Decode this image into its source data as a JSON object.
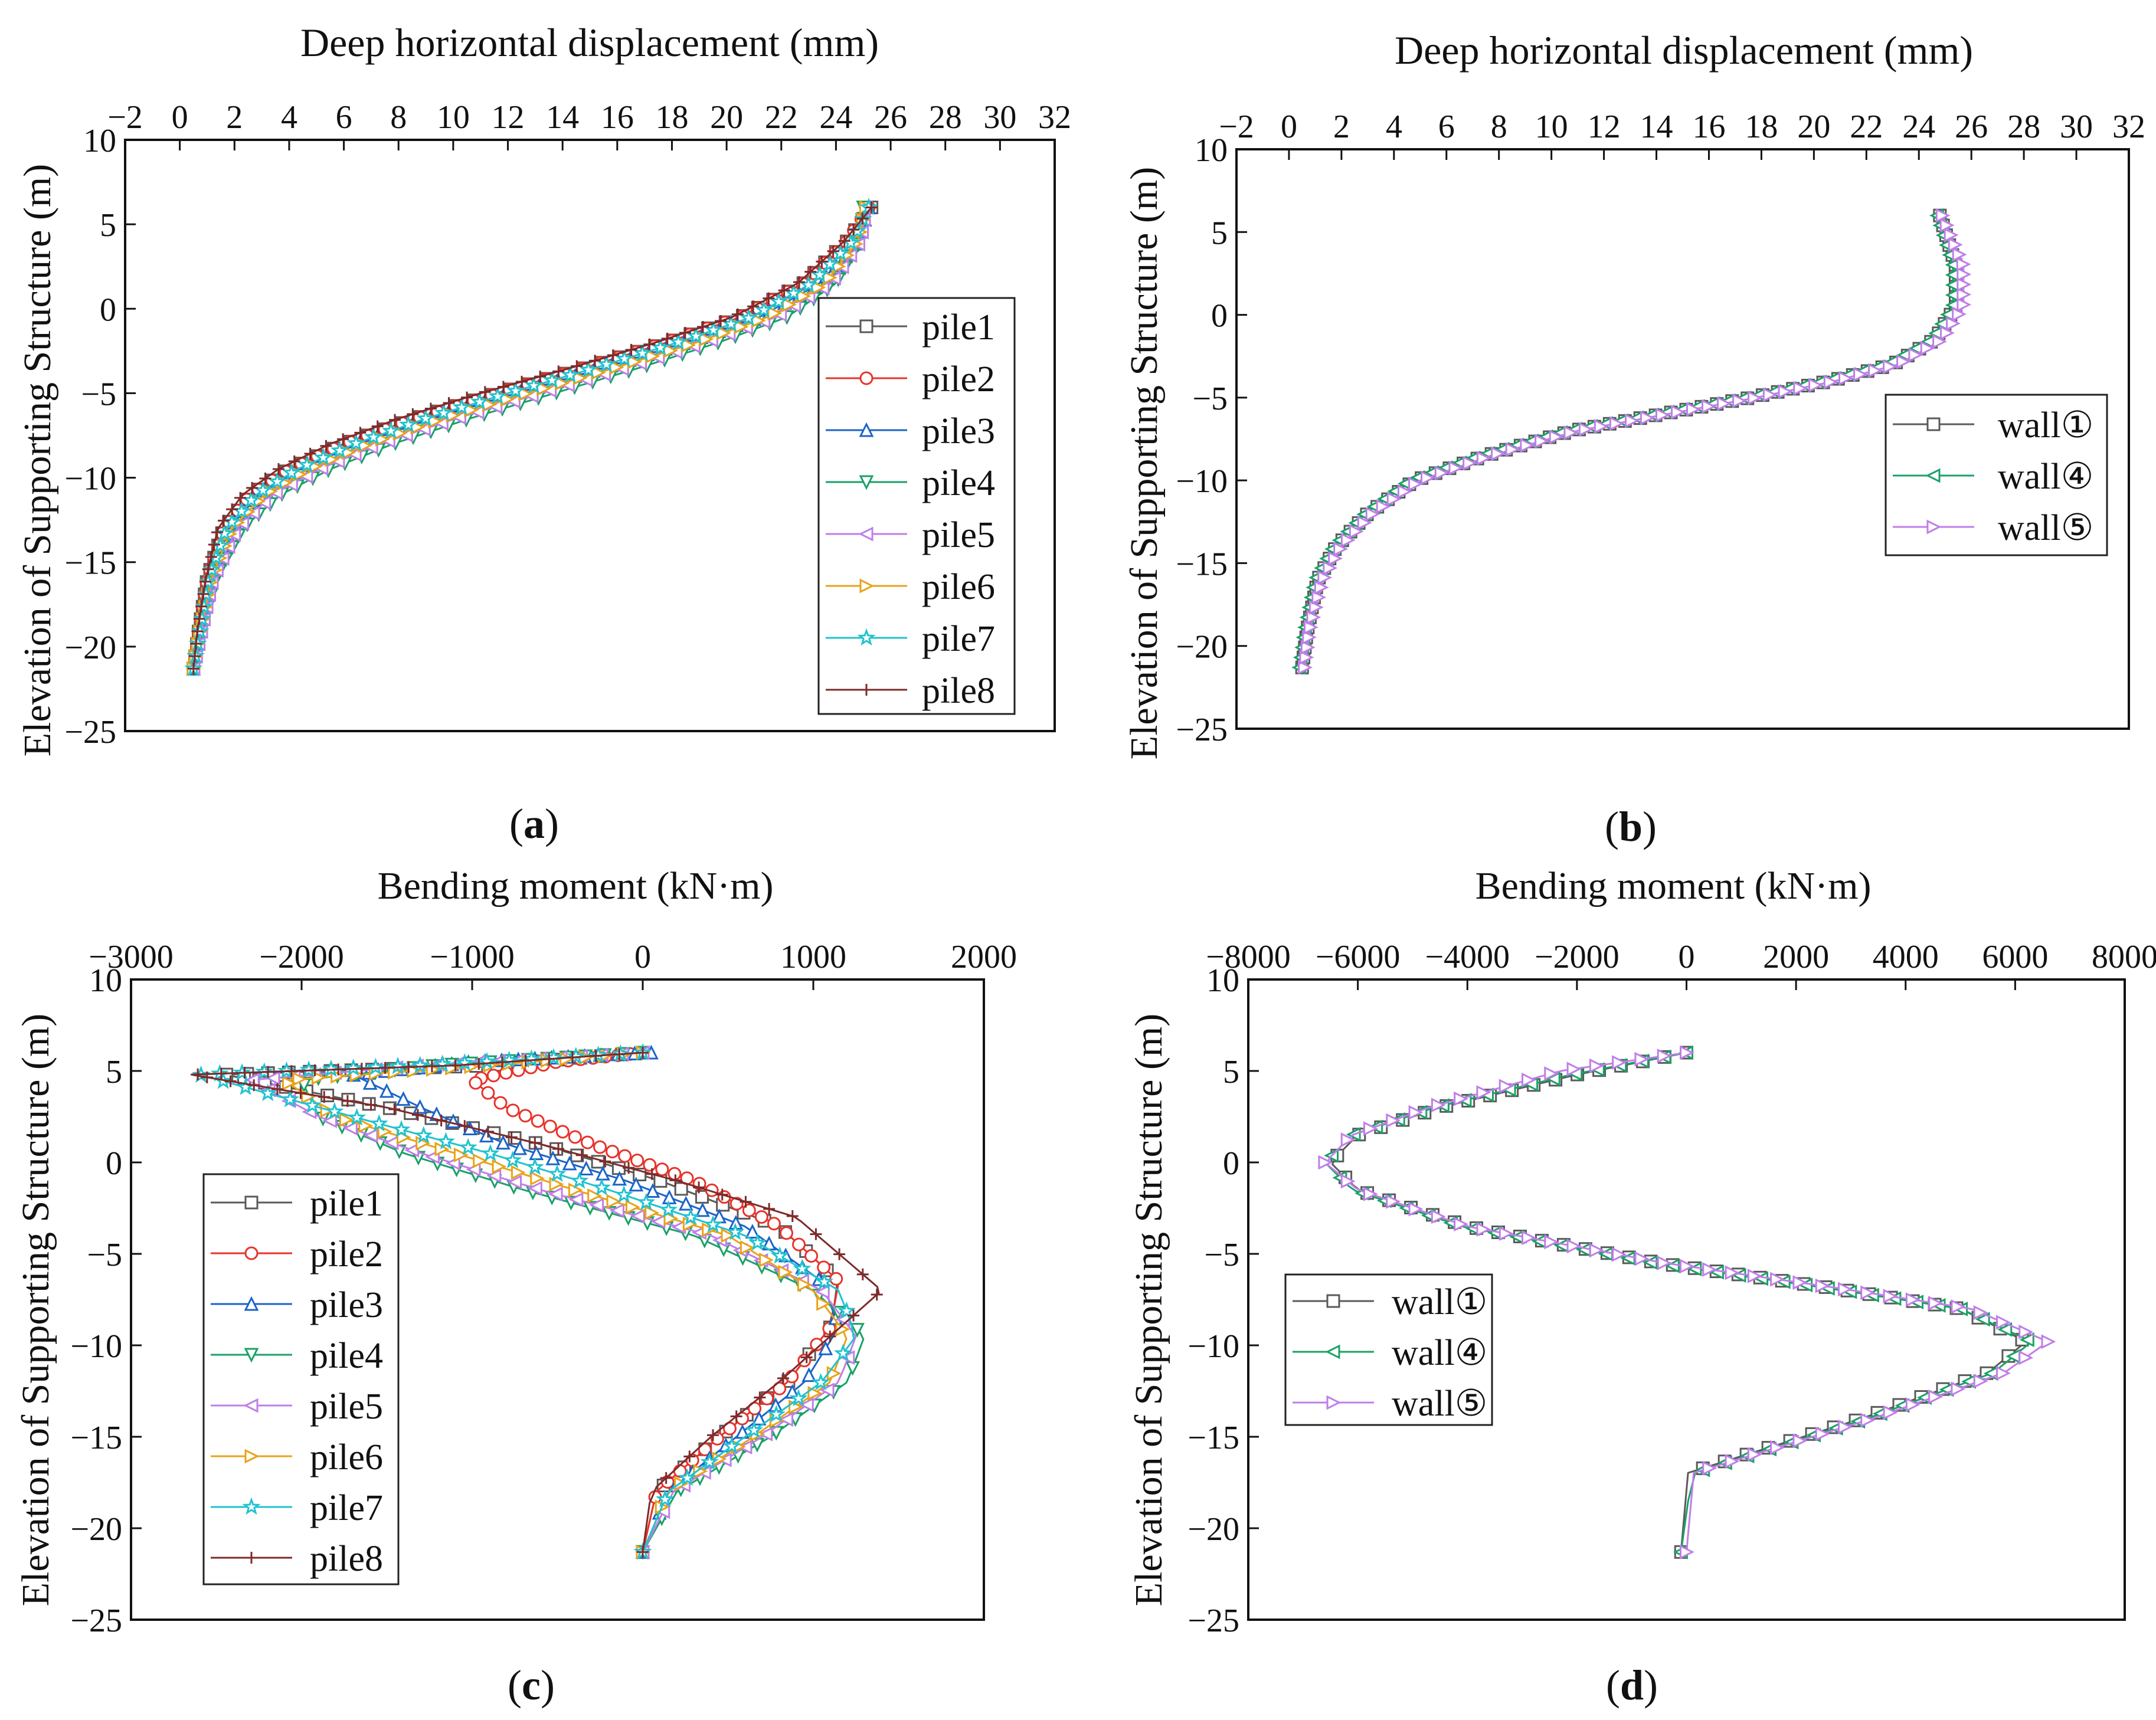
{
  "figure": {
    "panels": [
      "a",
      "b",
      "c",
      "d"
    ]
  },
  "series_styles": {
    "pile1": {
      "color": "#5a5a5a",
      "marker": "square"
    },
    "pile2": {
      "color": "#e8332b",
      "marker": "circle"
    },
    "pile3": {
      "color": "#1c64c8",
      "marker": "triangle-up"
    },
    "pile4": {
      "color": "#1aa167",
      "marker": "triangle-down"
    },
    "pile5": {
      "color": "#c07ee8",
      "marker": "triangle-left"
    },
    "pile6": {
      "color": "#e8a317",
      "marker": "triangle-right"
    },
    "pile7": {
      "color": "#22c2cf",
      "marker": "star"
    },
    "pile8": {
      "color": "#7e2a2a",
      "marker": "plus"
    },
    "wall1": {
      "color": "#5a5a5a",
      "marker": "square"
    },
    "wall4": {
      "color": "#1aa167",
      "marker": "triangle-left"
    },
    "wall5": {
      "color": "#c07ee8",
      "marker": "triangle-right"
    }
  },
  "chart_data": [
    {
      "id": "a",
      "type": "line",
      "caption": "a",
      "xlabel": "Deep horizontal displacement (mm)",
      "ylabel": "Elevation of Supporting Structure (m)",
      "xlim": [
        -2,
        32
      ],
      "ylim": [
        -25,
        10
      ],
      "xticks": [
        "−2",
        "0",
        "2",
        "4",
        "6",
        "8",
        "10",
        "12",
        "14",
        "16",
        "18",
        "20",
        "22",
        "24",
        "26",
        "28",
        "30",
        "32"
      ],
      "yticks": [
        "10",
        "5",
        "0",
        "−5",
        "−10",
        "−15",
        "−20",
        "−25"
      ],
      "legend": "right-middle",
      "series": [
        {
          "name": "pile1",
          "style": "pile1",
          "x": [
            0.5,
            0.7,
            1.0,
            1.6,
            2.6,
            4.0,
            6.0,
            8.6,
            11.6,
            14.8,
            17.8,
            20.5,
            22.8,
            24.4,
            25.3
          ],
          "y": [
            -21.3,
            -19,
            -16,
            -13,
            -11,
            -9.5,
            -8,
            -6.5,
            -5,
            -3.5,
            -2,
            -0.5,
            1.5,
            4,
            6
          ]
        },
        {
          "name": "pile2",
          "style": "pile2",
          "x": [
            0.5,
            0.7,
            1.0,
            1.6,
            2.6,
            4.0,
            6.0,
            8.6,
            11.6,
            14.8,
            17.8,
            20.5,
            22.8,
            24.4,
            25.2
          ],
          "y": [
            -21.3,
            -19,
            -16,
            -13,
            -11,
            -9.5,
            -8,
            -6.5,
            -5,
            -3.5,
            -2,
            -0.5,
            1.5,
            4,
            6
          ]
        },
        {
          "name": "pile3",
          "style": "pile3",
          "x": [
            0.5,
            0.75,
            1.1,
            1.8,
            2.9,
            4.4,
            6.5,
            9.2,
            12.3,
            15.5,
            18.5,
            21.2,
            23.4,
            24.8,
            25.2
          ],
          "y": [
            -21.3,
            -19,
            -16,
            -13,
            -11,
            -9.5,
            -8,
            -6.5,
            -5,
            -3.5,
            -2,
            -0.5,
            1.5,
            4,
            6
          ]
        },
        {
          "name": "pile4",
          "style": "pile4",
          "x": [
            0.5,
            0.8,
            1.3,
            2.3,
            3.7,
            5.5,
            7.8,
            10.6,
            13.7,
            16.8,
            19.7,
            22.2,
            24.0,
            24.9,
            25.0
          ],
          "y": [
            -21.3,
            -19,
            -16,
            -13,
            -11,
            -9.5,
            -8,
            -6.5,
            -5,
            -3.5,
            -2,
            -0.5,
            1.5,
            4,
            6
          ]
        },
        {
          "name": "pile5",
          "style": "pile5",
          "x": [
            0.5,
            0.8,
            1.2,
            2.1,
            3.4,
            5.1,
            7.3,
            10.1,
            13.2,
            16.3,
            19.2,
            21.8,
            23.8,
            24.9,
            25.1
          ],
          "y": [
            -21.3,
            -19,
            -16,
            -13,
            -11,
            -9.5,
            -8,
            -6.5,
            -5,
            -3.5,
            -2,
            -0.5,
            1.5,
            4,
            6
          ]
        },
        {
          "name": "pile6",
          "style": "pile6",
          "x": [
            0.5,
            0.75,
            1.15,
            1.9,
            3.1,
            4.7,
            6.9,
            9.6,
            12.7,
            15.9,
            18.9,
            21.5,
            23.6,
            24.8,
            25.1
          ],
          "y": [
            -21.3,
            -19,
            -16,
            -13,
            -11,
            -9.5,
            -8,
            -6.5,
            -5,
            -3.5,
            -2,
            -0.5,
            1.5,
            4,
            6
          ]
        },
        {
          "name": "pile7",
          "style": "pile7",
          "x": [
            0.5,
            0.75,
            1.05,
            1.7,
            2.8,
            4.3,
            6.4,
            9.0,
            12.0,
            15.2,
            18.2,
            20.9,
            23.1,
            24.6,
            25.2
          ],
          "y": [
            -21.3,
            -19,
            -16,
            -13,
            -11,
            -9.5,
            -8,
            -6.5,
            -5,
            -3.5,
            -2,
            -0.5,
            1.5,
            4,
            6
          ]
        },
        {
          "name": "pile8",
          "style": "pile8",
          "x": [
            0.5,
            0.65,
            0.95,
            1.4,
            2.3,
            3.6,
            5.5,
            8.0,
            11.0,
            14.3,
            17.4,
            20.2,
            22.6,
            24.3,
            25.3
          ],
          "y": [
            -21.3,
            -19,
            -16,
            -13,
            -11,
            -9.5,
            -8,
            -6.5,
            -5,
            -3.5,
            -2,
            -0.5,
            1.5,
            4,
            6
          ]
        }
      ]
    },
    {
      "id": "b",
      "type": "line",
      "caption": "b",
      "xlabel": "Deep horizontal displacement (mm)",
      "ylabel": "Elevation of Supporting Structure (m)",
      "xlim": [
        -2,
        32
      ],
      "ylim": [
        -25,
        10
      ],
      "xticks": [
        "−2",
        "0",
        "2",
        "4",
        "6",
        "8",
        "10",
        "12",
        "14",
        "16",
        "18",
        "20",
        "22",
        "24",
        "26",
        "28",
        "30",
        "32"
      ],
      "yticks": [
        "10",
        "5",
        "0",
        "−5",
        "−10",
        "−15",
        "−20",
        "−25"
      ],
      "legend": "right-middle",
      "series": [
        {
          "name": "wall①",
          "style": "wall1",
          "x": [
            0.5,
            0.7,
            1.1,
            1.8,
            3.0,
            4.8,
            7.5,
            10.8,
            14.2,
            17.6,
            20.6,
            23.0,
            24.6,
            25.4,
            25.4,
            24.8
          ],
          "y": [
            -21.3,
            -19,
            -16,
            -14,
            -12,
            -10,
            -8.5,
            -7,
            -6,
            -5,
            -4,
            -3,
            -1.5,
            0.5,
            3,
            6
          ]
        },
        {
          "name": "wall④",
          "style": "wall4",
          "x": [
            0.4,
            0.6,
            1.0,
            1.7,
            2.9,
            4.6,
            7.3,
            10.6,
            14.0,
            17.4,
            20.4,
            22.8,
            24.5,
            25.3,
            25.3,
            24.7
          ],
          "y": [
            -21.3,
            -19,
            -16,
            -14,
            -12,
            -10,
            -8.5,
            -7,
            -6,
            -5,
            -4,
            -3,
            -1.5,
            0.5,
            3,
            6
          ]
        },
        {
          "name": "wall⑤",
          "style": "wall5",
          "x": [
            0.6,
            0.8,
            1.3,
            2.0,
            3.2,
            5.0,
            7.7,
            11.0,
            14.4,
            17.8,
            20.8,
            23.2,
            24.9,
            25.7,
            25.7,
            24.9
          ],
          "y": [
            -21.3,
            -19,
            -16,
            -14,
            -12,
            -10,
            -8.5,
            -7,
            -6,
            -5,
            -4,
            -3,
            -1.5,
            0.5,
            3,
            6
          ]
        }
      ]
    },
    {
      "id": "c",
      "type": "line",
      "caption": "c",
      "xlabel": "Bending moment (kN·m)",
      "ylabel": "Elevation of Supporting Structure (m)",
      "xlim": [
        -3000,
        2000
      ],
      "ylim": [
        -25,
        10
      ],
      "xticks": [
        "−3000",
        "−2000",
        "−1000",
        "0",
        "1000",
        "2000"
      ],
      "yticks": [
        "10",
        "5",
        "0",
        "−5",
        "−10",
        "−15",
        "−20",
        "−25"
      ],
      "legend": "left-bottom",
      "series": [
        {
          "name": "pile1",
          "style": "pile1",
          "x": [
            0,
            -900,
            -2450,
            -1500,
            -600,
            100,
            800,
            1150,
            1100,
            850,
            450,
            80,
            0
          ],
          "y": [
            6,
            5.3,
            4.8,
            3,
            1,
            -1,
            -3.5,
            -6.5,
            -9,
            -12,
            -15,
            -18,
            -21.3
          ]
        },
        {
          "name": "pile2",
          "style": "pile2",
          "x": [
            0,
            -500,
            -1000,
            -800,
            -300,
            300,
            800,
            1150,
            1100,
            850,
            450,
            80,
            0
          ],
          "y": [
            6,
            5.5,
            4.5,
            3,
            1,
            -1,
            -3.5,
            -6.5,
            -9,
            -12,
            -15,
            -18,
            -21.3
          ]
        },
        {
          "name": "pile3",
          "style": "pile3",
          "x": [
            50,
            -1000,
            -1700,
            -1300,
            -800,
            -100,
            600,
            1050,
            1150,
            950,
            550,
            150,
            0
          ],
          "y": [
            6,
            5.5,
            4.8,
            3,
            1,
            -1,
            -3.5,
            -6.5,
            -9,
            -12,
            -15,
            -18,
            -21.3
          ]
        },
        {
          "name": "pile4",
          "style": "pile4",
          "x": [
            0,
            -1200,
            -2000,
            -1900,
            -1400,
            -700,
            300,
            1000,
            1300,
            1200,
            750,
            200,
            0
          ],
          "y": [
            6,
            5.3,
            4.5,
            2.5,
            0.5,
            -1.5,
            -4,
            -7,
            -9.5,
            -12,
            -15,
            -18,
            -21.3
          ]
        },
        {
          "name": "pile5",
          "style": "pile5",
          "x": [
            0,
            -1300,
            -2300,
            -1900,
            -1300,
            -600,
            400,
            1050,
            1250,
            1150,
            700,
            180,
            0
          ],
          "y": [
            6,
            5.3,
            4.5,
            2.5,
            0.5,
            -1.5,
            -4,
            -7,
            -9.5,
            -12,
            -15,
            -18,
            -21.3
          ]
        },
        {
          "name": "pile6",
          "style": "pile6",
          "x": [
            0,
            -900,
            -2100,
            -1800,
            -1100,
            -400,
            500,
            1000,
            1200,
            1100,
            650,
            150,
            0
          ],
          "y": [
            6,
            5.3,
            4.5,
            2.5,
            0.5,
            -1.5,
            -4,
            -7,
            -9.5,
            -12,
            -15,
            -18,
            -21.3
          ]
        },
        {
          "name": "pile7",
          "style": "pile7",
          "x": [
            0,
            -1300,
            -2600,
            -1700,
            -900,
            -200,
            600,
            1150,
            1250,
            1050,
            600,
            150,
            0
          ],
          "y": [
            6,
            5.3,
            4.8,
            2.5,
            0.5,
            -1.5,
            -4,
            -7,
            -9.5,
            -12,
            -15,
            -18,
            -21.3
          ]
        },
        {
          "name": "pile8",
          "style": "pile8",
          "x": [
            0,
            -1100,
            -2650,
            -1500,
            -600,
            200,
            900,
            1400,
            1100,
            800,
            400,
            50,
            0
          ],
          "y": [
            6,
            5.3,
            4.8,
            3,
            1,
            -1,
            -3,
            -7,
            -9.5,
            -12,
            -15,
            -18,
            -21.3
          ]
        }
      ]
    },
    {
      "id": "d",
      "type": "line",
      "caption": "d",
      "xlabel": "Bending moment (kN·m)",
      "ylabel": "Elevation of  Supporting Structure (m)",
      "xlim": [
        -8000,
        8000
      ],
      "ylim": [
        -25,
        10
      ],
      "xticks": [
        "−8000",
        "−6000",
        "−4000",
        "−2000",
        "0",
        "2000",
        "4000",
        "6000",
        "8000"
      ],
      "yticks": [
        "10",
        "5",
        "0",
        "−5",
        "−10",
        "−15",
        "−20",
        "−25"
      ],
      "legend": "left-bottom",
      "series": [
        {
          "name": "wall①",
          "style": "wall1",
          "x": [
            0,
            -2000,
            -4500,
            -6000,
            -6500,
            -6000,
            -4000,
            -500,
            2500,
            5000,
            6200,
            5500,
            3200,
            0,
            -100
          ],
          "y": [
            6,
            4.8,
            3,
            1.5,
            0,
            -1.5,
            -3.5,
            -5.5,
            -6.8,
            -8,
            -9.8,
            -11.5,
            -14,
            -17,
            -21.3
          ]
        },
        {
          "name": "wall④",
          "style": "wall4",
          "x": [
            0,
            -2100,
            -4600,
            -6100,
            -6600,
            -6100,
            -4100,
            -600,
            2400,
            5000,
            6300,
            5600,
            3300,
            100,
            -100
          ],
          "y": [
            6,
            4.8,
            3,
            1.5,
            0,
            -1.5,
            -3.5,
            -5.5,
            -6.8,
            -8,
            -9.8,
            -11.5,
            -14,
            -17,
            -21.3
          ]
        },
        {
          "name": "wall⑤",
          "style": "wall5",
          "x": [
            0,
            -2300,
            -4700,
            -6100,
            -6600,
            -6000,
            -4000,
            -400,
            2600,
            5200,
            6600,
            5800,
            3400,
            100,
            0
          ],
          "y": [
            6,
            5,
            3,
            1.5,
            0,
            -1.5,
            -3.5,
            -5.5,
            -6.8,
            -8,
            -9.8,
            -11.5,
            -14,
            -17,
            -21.3
          ]
        }
      ]
    }
  ]
}
